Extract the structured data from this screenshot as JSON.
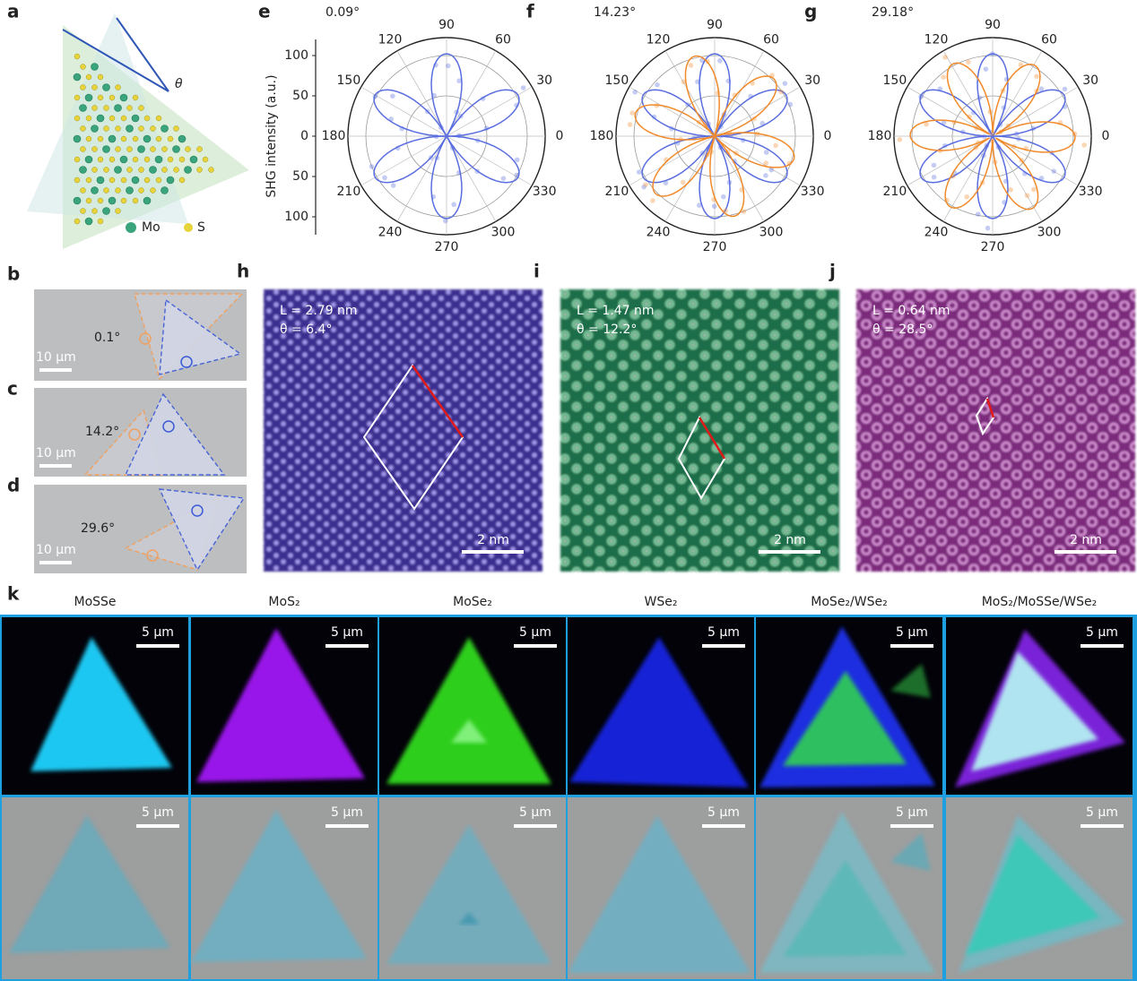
{
  "panel_a": {
    "label": "a",
    "theta": "θ",
    "legend": [
      "Mo",
      "S"
    ]
  },
  "optical": [
    {
      "label": "b",
      "angle": "0.1°",
      "scale": "10 µm"
    },
    {
      "label": "c",
      "angle": "14.2°",
      "scale": "10 µm"
    },
    {
      "label": "d",
      "angle": "29.6°",
      "scale": "10 µm"
    }
  ],
  "polar": {
    "y_label": "SHG intensity (a.u.)",
    "radial_ticks": [
      "100",
      "50",
      "0",
      "50",
      "100"
    ],
    "angles": [
      "0",
      "30",
      "60",
      "90",
      "120",
      "150",
      "180",
      "210",
      "240",
      "270",
      "300",
      "330"
    ],
    "panels": [
      {
        "label": "e",
        "title": "0.09°"
      },
      {
        "label": "f",
        "title": "14.23°"
      },
      {
        "label": "g",
        "title": "29.18°"
      }
    ]
  },
  "stem": [
    {
      "label": "h",
      "L": "L = 2.79 nm",
      "theta": "θ = 6.4°",
      "scale": "2 nm"
    },
    {
      "label": "i",
      "L": "L = 1.47 nm",
      "theta": "θ = 12.2°",
      "scale": "2 nm"
    },
    {
      "label": "j",
      "L": "L = 0.64 nm",
      "theta": "θ = 28.5°",
      "scale": "2 nm"
    }
  ],
  "panel_k": {
    "label": "k",
    "columns": [
      "MoSSe",
      "MoS₂",
      "MoSe₂",
      "WSe₂",
      "MoSe₂/WSe₂",
      "MoS₂/MoSSe/WSe₂"
    ],
    "scale": "5 µm"
  }
}
